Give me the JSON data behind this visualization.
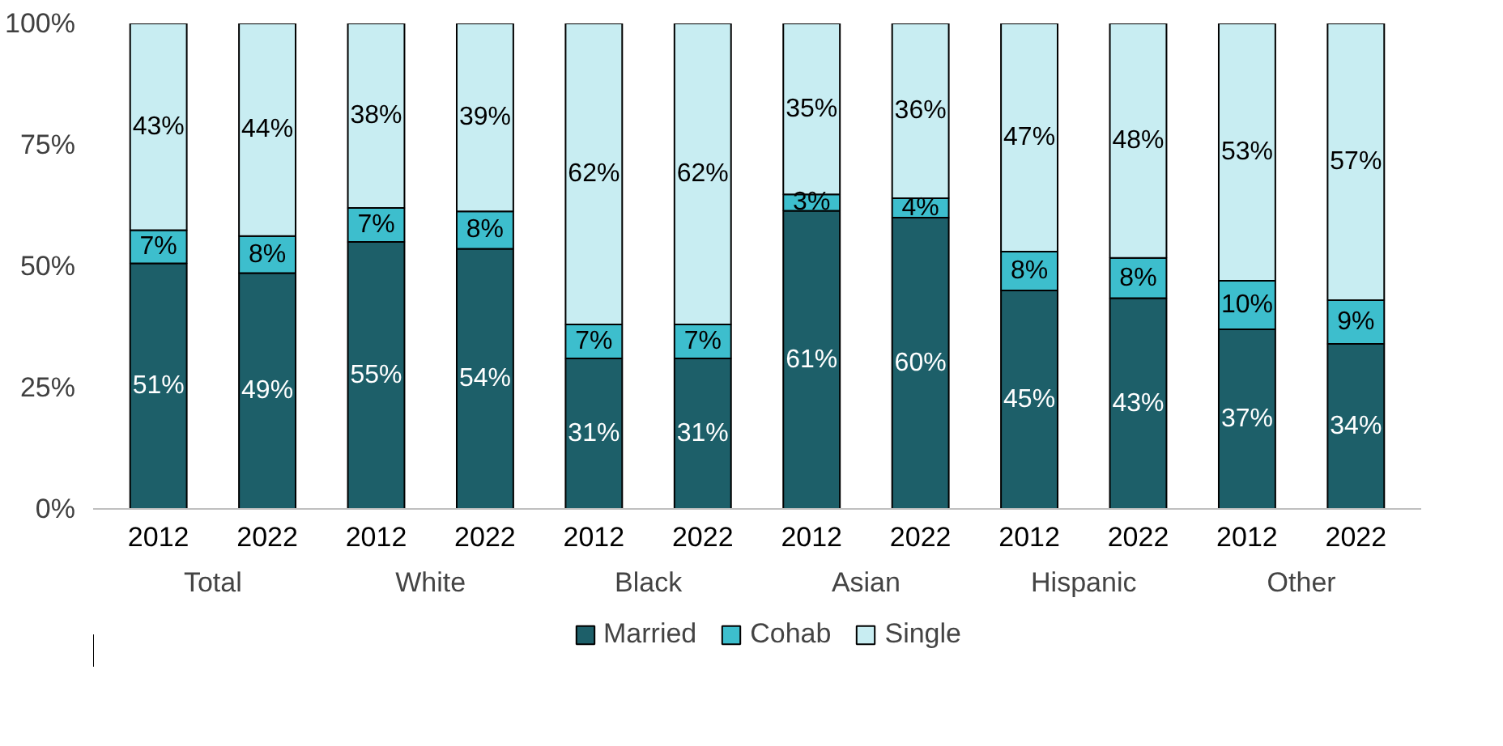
{
  "chart_data": {
    "type": "bar",
    "stacked": true,
    "categories": [
      "2012",
      "2022",
      "2012",
      "2022",
      "2012",
      "2022",
      "2012",
      "2022",
      "2012",
      "2022",
      "2012",
      "2022"
    ],
    "annotations": [
      "Total",
      "White",
      "Black",
      "Asian",
      "Hispanic",
      "Other"
    ],
    "series": [
      {
        "name": "Married",
        "color": "#1d5f69",
        "values": [
          50.6,
          48.6,
          55,
          53.6,
          31,
          31,
          61.4,
          60,
          45,
          43.4,
          37,
          34
        ],
        "value_labels": [
          "51%",
          "49%",
          "55%",
          "54%",
          "31%",
          "31%",
          "61%",
          "60%",
          "45%",
          "43%",
          "37%",
          "34%"
        ]
      },
      {
        "name": "Cohab",
        "color": "#3dbecd",
        "values": [
          6.8,
          7.6,
          7,
          7.7,
          7,
          7,
          3.4,
          4,
          8,
          8.3,
          10,
          9
        ],
        "value_labels": [
          "7%",
          "8%",
          "7%",
          "8%",
          "7%",
          "7%",
          "3%",
          "4%",
          "8%",
          "8%",
          "10%",
          "9%"
        ]
      },
      {
        "name": "Single",
        "color": "#c8edf2",
        "values": [
          42.6,
          43.8,
          38,
          38.7,
          62,
          62,
          35.2,
          36,
          47,
          48.3,
          53,
          57
        ],
        "value_labels": [
          "43%",
          "44%",
          "38%",
          "39%",
          "62%",
          "62%",
          "35%",
          "36%",
          "47%",
          "48%",
          "53%",
          "57%"
        ]
      }
    ],
    "ylim": [
      0,
      100
    ],
    "yticks": [
      {
        "value": 0,
        "label": "0%"
      },
      {
        "value": 25,
        "label": "25%"
      },
      {
        "value": 50,
        "label": "50%"
      },
      {
        "value": 75,
        "label": "75%"
      },
      {
        "value": 100,
        "label": "100%"
      }
    ],
    "grid": false,
    "legend": "bottom"
  }
}
